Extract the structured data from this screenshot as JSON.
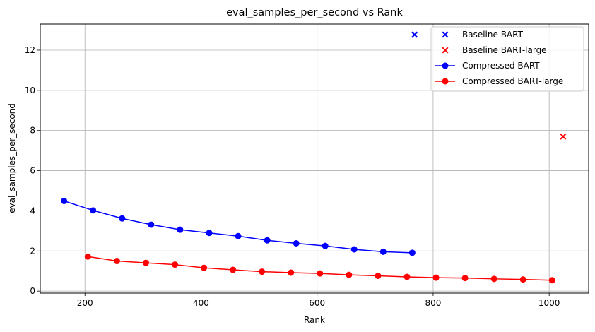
{
  "chart_data": {
    "type": "line",
    "title": "eval_samples_per_second vs Rank",
    "xlabel": "Rank",
    "ylabel": "eval_samples_per_second",
    "xlim": [
      123,
      1068
    ],
    "ylim": [
      -0.1,
      13.3
    ],
    "xticks": [
      200,
      400,
      600,
      800,
      1000
    ],
    "yticks": [
      0,
      2,
      4,
      6,
      8,
      10,
      12
    ],
    "grid": true,
    "legend_position": "top-right",
    "series": [
      {
        "name": "Baseline BART",
        "kind": "scatter",
        "marker": "x",
        "color": "#0000ff",
        "x": [
          768
        ],
        "y": [
          12.77
        ]
      },
      {
        "name": "Baseline BART-large",
        "kind": "scatter",
        "marker": "x",
        "color": "#ff0000",
        "x": [
          1024
        ],
        "y": [
          7.7
        ]
      },
      {
        "name": "Compressed BART",
        "kind": "line",
        "marker": "o",
        "color": "#0000ff",
        "x": [
          164,
          214,
          264,
          314,
          364,
          414,
          464,
          514,
          564,
          614,
          664,
          714,
          764
        ],
        "y": [
          4.49,
          4.02,
          3.62,
          3.31,
          3.06,
          2.9,
          2.74,
          2.53,
          2.38,
          2.25,
          2.08,
          1.96,
          1.91
        ]
      },
      {
        "name": "Compressed BART-large",
        "kind": "line",
        "marker": "o",
        "color": "#ff0000",
        "x": [
          205,
          255,
          305,
          355,
          405,
          455,
          505,
          555,
          605,
          655,
          705,
          755,
          805,
          855,
          905,
          955,
          1005
        ],
        "y": [
          1.72,
          1.5,
          1.41,
          1.32,
          1.16,
          1.06,
          0.97,
          0.92,
          0.88,
          0.81,
          0.76,
          0.71,
          0.67,
          0.65,
          0.61,
          0.58,
          0.54
        ]
      }
    ]
  }
}
